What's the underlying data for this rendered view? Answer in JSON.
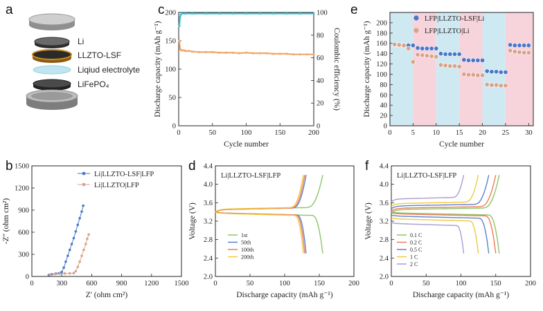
{
  "panels": {
    "a": {
      "letter": "a",
      "layers": [
        {
          "label": "Li"
        },
        {
          "label": "LLZTO-LSF"
        },
        {
          "label": "Liqiud electrolyte"
        },
        {
          "label": "LiFePO₄"
        }
      ]
    }
  },
  "chart_data": [
    {
      "id": "c",
      "letter": "c",
      "type": "scatter",
      "xlabel": "Cycle number",
      "ylabel": "Discharge capacity (mAh g⁻¹)",
      "y2label": "Coulombic efficiency (%)",
      "xlim": [
        0,
        200
      ],
      "ylim": [
        0,
        200
      ],
      "y2lim": [
        0,
        100
      ],
      "xticks": [
        0,
        50,
        100,
        150,
        200
      ],
      "yticks": [
        0,
        50,
        100,
        150,
        200
      ],
      "y2ticks": [
        0,
        20,
        40,
        60,
        80,
        100
      ],
      "series": [
        {
          "name": "Discharge capacity",
          "axis": "left",
          "color": "#f0a868",
          "x": [
            1,
            2,
            3,
            5,
            8,
            10,
            15,
            20,
            30,
            40,
            50,
            60,
            70,
            80,
            90,
            100,
            110,
            120,
            130,
            140,
            150,
            160,
            170,
            180,
            190,
            200
          ],
          "y": [
            150,
            136,
            134,
            133,
            133,
            132,
            132,
            131,
            130,
            130,
            130,
            129,
            129,
            129,
            128,
            129,
            128,
            128,
            128,
            127,
            127,
            127,
            126,
            126,
            126,
            126
          ]
        },
        {
          "name": "Coulombic efficiency",
          "axis": "right",
          "color": "#3fc5d6",
          "x": [
            1,
            2,
            3,
            5,
            10,
            20,
            40,
            60,
            80,
            100,
            120,
            140,
            160,
            180,
            200
          ],
          "y": [
            88,
            96,
            98,
            99,
            99,
            99,
            99,
            99,
            99,
            99,
            99,
            99,
            99,
            99,
            99
          ]
        }
      ]
    },
    {
      "id": "e",
      "letter": "e",
      "type": "scatter",
      "xlabel": "Cycle number",
      "ylabel": "Discharge capacity (mAh g⁻¹)",
      "xlim": [
        0,
        31
      ],
      "ylim": [
        0,
        220
      ],
      "xticks": [
        0,
        5,
        10,
        15,
        20,
        25,
        30
      ],
      "yticks": [
        0,
        20,
        40,
        60,
        80,
        100,
        120,
        140,
        160,
        180,
        200
      ],
      "bands": [
        {
          "from": 0,
          "to": 5,
          "color": "#cfe9f2"
        },
        {
          "from": 5,
          "to": 10,
          "color": "#f7d3dc"
        },
        {
          "from": 10,
          "to": 15,
          "color": "#cfe9f2"
        },
        {
          "from": 15,
          "to": 20,
          "color": "#f7d3dc"
        },
        {
          "from": 20,
          "to": 25,
          "color": "#cfe9f2"
        },
        {
          "from": 25,
          "to": 31,
          "color": "#f7d3dc"
        }
      ],
      "series": [
        {
          "name": "LFP|LLZTO-LSF|Li",
          "color": "#4a78c8",
          "x": [
            1,
            2,
            3,
            4,
            5,
            6,
            7,
            8,
            9,
            10,
            11,
            12,
            13,
            14,
            15,
            16,
            17,
            18,
            19,
            20,
            21,
            22,
            23,
            24,
            25,
            26,
            27,
            28,
            29,
            30
          ],
          "y": [
            157,
            157,
            157,
            156,
            156,
            151,
            150,
            150,
            150,
            150,
            140,
            139,
            139,
            139,
            139,
            128,
            127,
            127,
            127,
            127,
            106,
            105,
            105,
            104,
            104,
            157,
            156,
            156,
            156,
            156
          ]
        },
        {
          "name": "LFP|LLZTO|Li",
          "color": "#d9a38a",
          "x": [
            1,
            2,
            3,
            4,
            5,
            6,
            7,
            8,
            9,
            10,
            11,
            12,
            13,
            14,
            15,
            16,
            17,
            18,
            19,
            20,
            21,
            22,
            23,
            24,
            25,
            26,
            27,
            28,
            29,
            30
          ],
          "y": [
            158,
            157,
            156,
            150,
            124,
            138,
            137,
            136,
            135,
            134,
            118,
            117,
            116,
            116,
            115,
            100,
            99,
            99,
            98,
            98,
            80,
            79,
            79,
            78,
            78,
            146,
            144,
            143,
            142,
            142
          ]
        }
      ]
    },
    {
      "id": "b",
      "letter": "b",
      "type": "scatter",
      "xlabel": "Z' (ohm cm²)",
      "ylabel": "-Z'' (ohm cm²)",
      "xlim": [
        0,
        1500
      ],
      "ylim": [
        0,
        1500
      ],
      "xticks": [
        0,
        300,
        600,
        900,
        1200,
        1500
      ],
      "yticks": [
        0,
        300,
        600,
        900,
        1200,
        1500
      ],
      "series": [
        {
          "name": "Li|LLZTO-LSF|LFP",
          "color": "#4a78c8",
          "x": [
            170,
            200,
            240,
            270,
            290,
            300,
            320,
            340,
            360,
            380,
            400,
            420,
            440,
            460,
            480,
            500,
            515
          ],
          "y": [
            20,
            30,
            38,
            42,
            48,
            60,
            120,
            200,
            280,
            360,
            440,
            520,
            610,
            700,
            790,
            880,
            960
          ]
        },
        {
          "name": "Li|LLZTO|LFP",
          "color": "#d9a38a",
          "x": [
            180,
            230,
            280,
            330,
            380,
            420,
            440,
            460,
            480,
            500,
            520,
            540,
            555,
            570
          ],
          "y": [
            25,
            32,
            38,
            40,
            42,
            45,
            70,
            130,
            200,
            280,
            360,
            440,
            510,
            570
          ]
        }
      ]
    },
    {
      "id": "d",
      "letter": "d",
      "type": "line",
      "title": "Li|LLZTO-LSF|LFP",
      "xlabel": "Discharge capacity (mAh g⁻¹)",
      "ylabel": "Voltage (V)",
      "xlim": [
        0,
        200
      ],
      "ylim": [
        2.0,
        4.4
      ],
      "xticks": [
        0,
        50,
        100,
        150,
        200
      ],
      "yticks": [
        2.0,
        2.4,
        2.8,
        3.2,
        3.6,
        4.0,
        4.4
      ],
      "series": [
        {
          "name": "1st",
          "color": "#8cc467",
          "capacity": 155,
          "charge_plateau": 3.46,
          "discharge_plateau": 3.37
        },
        {
          "name": "50th",
          "color": "#5b82c9",
          "capacity": 131,
          "charge_plateau": 3.45,
          "discharge_plateau": 3.38
        },
        {
          "name": "100th",
          "color": "#ef7a52",
          "capacity": 129,
          "charge_plateau": 3.45,
          "discharge_plateau": 3.38
        },
        {
          "name": "200th",
          "color": "#f2c83c",
          "capacity": 127,
          "charge_plateau": 3.46,
          "discharge_plateau": 3.37
        }
      ]
    },
    {
      "id": "f",
      "letter": "f",
      "type": "line",
      "title": "Li|LLZTO-LSF|LFP",
      "xlabel": "Discharge capacity (mAh g⁻¹)",
      "ylabel": "Voltage (V)",
      "xlim": [
        0,
        200
      ],
      "ylim": [
        2.0,
        4.4
      ],
      "xticks": [
        0,
        50,
        100,
        150,
        200
      ],
      "yticks": [
        2.0,
        2.4,
        2.8,
        3.2,
        3.6,
        4.0,
        4.4
      ],
      "series": [
        {
          "name": "0.1 C",
          "color": "#8cc467",
          "capacity": 155,
          "charge_plateau": 3.45,
          "discharge_plateau": 3.38
        },
        {
          "name": "0.2 C",
          "color": "#ef7a52",
          "capacity": 150,
          "charge_plateau": 3.48,
          "discharge_plateau": 3.36
        },
        {
          "name": "0.5 C",
          "color": "#5b82c9",
          "capacity": 140,
          "charge_plateau": 3.53,
          "discharge_plateau": 3.31
        },
        {
          "name": "1 C",
          "color": "#f2c83c",
          "capacity": 125,
          "charge_plateau": 3.58,
          "discharge_plateau": 3.25
        },
        {
          "name": "2 C",
          "color": "#a99ad4",
          "capacity": 104,
          "charge_plateau": 3.68,
          "discharge_plateau": 3.15
        }
      ]
    }
  ]
}
